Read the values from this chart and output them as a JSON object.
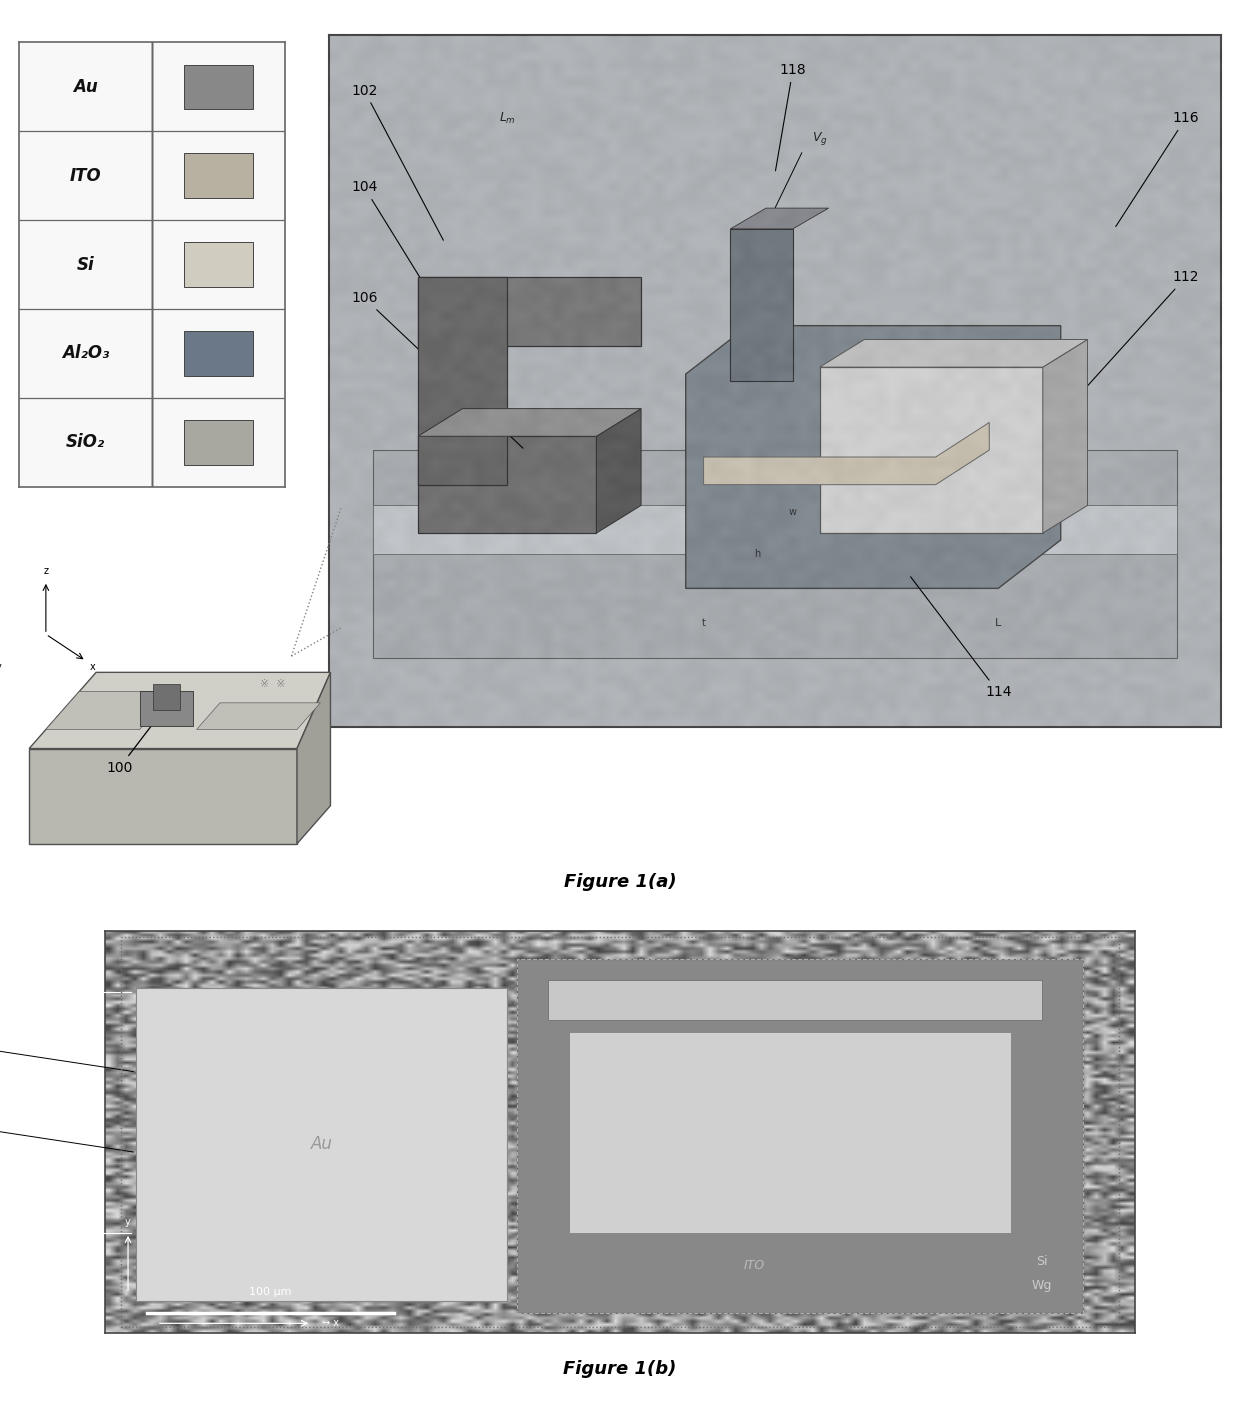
{
  "legend_items": [
    {
      "label": "Au",
      "color": "#888888"
    },
    {
      "label": "ITO",
      "color": "#b8b0a0"
    },
    {
      "label": "Si",
      "color": "#d0ccc0"
    },
    {
      "label": "Al₂O₃",
      "color": "#6a7888"
    },
    {
      "label": "SiO₂",
      "color": "#a8a8a0"
    }
  ],
  "fig1a_caption": "Figure 1(a)",
  "fig1b_caption": "Figure 1(b)",
  "bg_color": "#ffffff",
  "legend_bg": "#f8f8f8",
  "legend_border": "#666666",
  "zoomed_panel_bg": "#b0b4b8",
  "overview_chip_color": "#b0b0a8",
  "overview_chip_top": "#c8c8be",
  "micro_bg": "#a8a8a8",
  "micro_outer_bg": "#989898",
  "caption_fontsize": 13,
  "ref_fontsize": 10,
  "label_fontsize": 12
}
